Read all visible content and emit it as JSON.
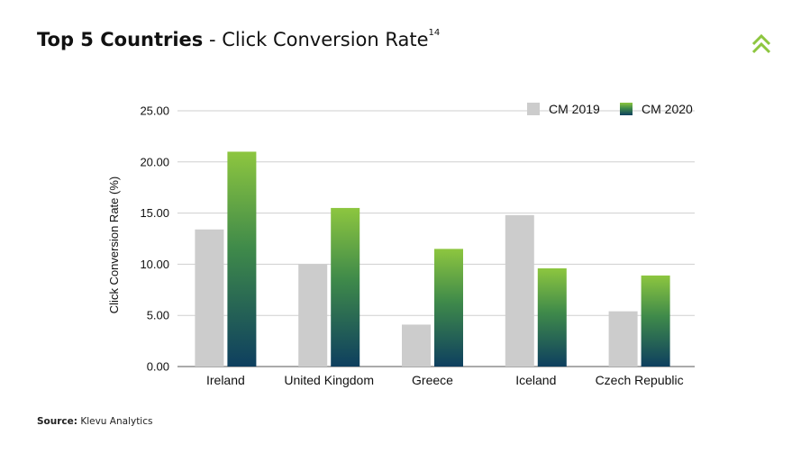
{
  "header": {
    "title_bold": "Top 5 Countries",
    "title_rest": " - Click Conversion Rate",
    "title_sup": "14",
    "logo_icon": "double-chevron-up-icon"
  },
  "footer": {
    "source_label": "Source:",
    "source_value": " Klevu Analytics"
  },
  "chart_data": {
    "type": "bar",
    "title": "",
    "xlabel": "",
    "ylabel": "Click Conversion Rate (%)",
    "ylim": [
      0,
      25
    ],
    "yticks": [
      "0.00",
      "5.00",
      "10.00",
      "15.00",
      "20.00",
      "25.00"
    ],
    "grid": true,
    "legend_position": "top-right",
    "categories": [
      "Ireland",
      "United Kingdom",
      "Greece",
      "Iceland",
      "Czech Republic"
    ],
    "series": [
      {
        "name": "CM 2019",
        "color": "#cccccc",
        "values": [
          13.4,
          10.0,
          4.1,
          14.8,
          5.4
        ]
      },
      {
        "name": "CM 2020",
        "color_top": "#8dc63f",
        "color_bottom": "#0e3f5f",
        "values": [
          21.0,
          15.5,
          11.5,
          9.6,
          8.9
        ]
      }
    ]
  }
}
